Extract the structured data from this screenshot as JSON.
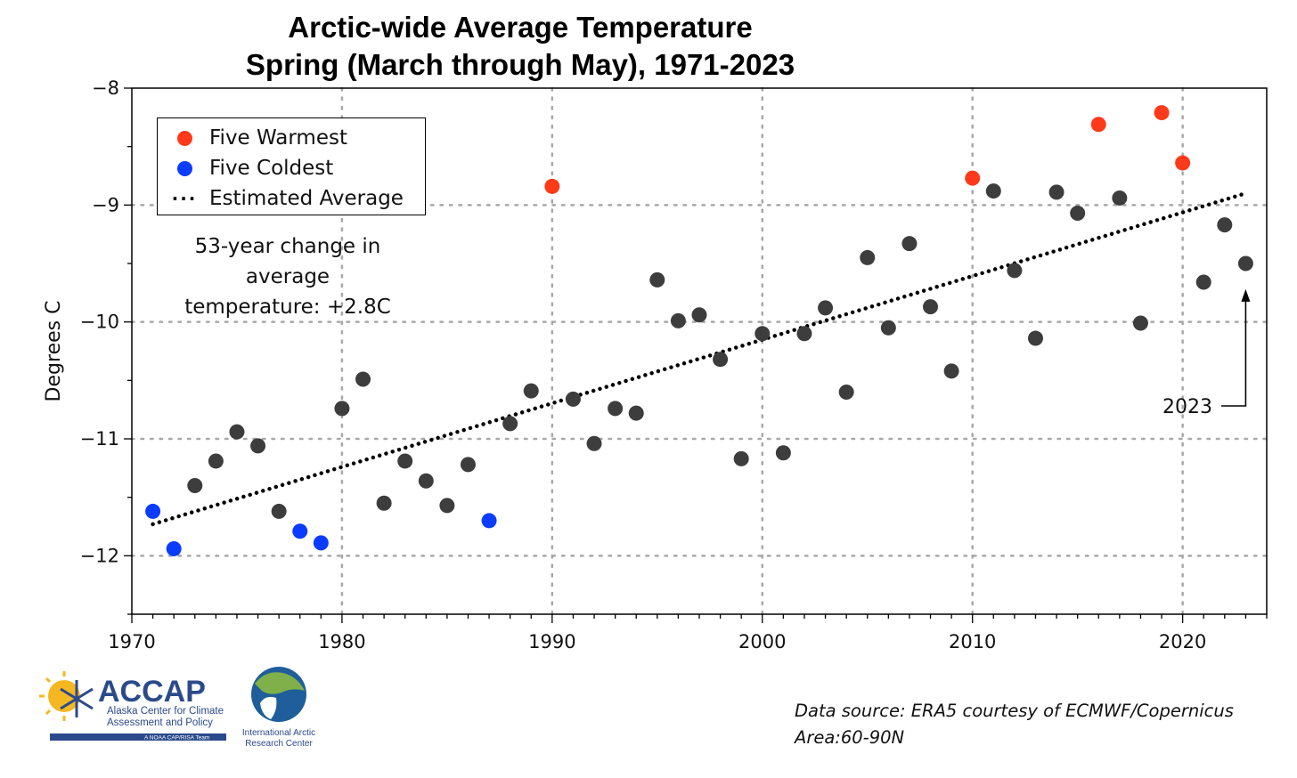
{
  "chart_data": {
    "type": "scatter",
    "title": "Arctic-wide Average Temperature",
    "subtitle": "Spring (March through May), 1971-2023",
    "xlabel": "",
    "ylabel": "Degrees C",
    "xlim": [
      1970,
      2024
    ],
    "ylim": [
      -12.5,
      -8
    ],
    "xticks": [
      1970,
      1980,
      1990,
      2000,
      2010,
      2020
    ],
    "yticks": [
      -8,
      -9,
      -10,
      -11,
      -12
    ],
    "ytick_labels": [
      "−8",
      "−9",
      "−10",
      "−11",
      "−12"
    ],
    "grid": true,
    "legend_position": "top-left",
    "series": [
      {
        "name": "Five Warmest",
        "color": "#ff3a1a",
        "x": [
          1990,
          2010,
          2016,
          2019,
          2020
        ],
        "y": [
          -8.84,
          -8.77,
          -8.31,
          -8.21,
          -8.64
        ]
      },
      {
        "name": "Five Coldest",
        "color": "#0a3cff",
        "x": [
          1971,
          1972,
          1978,
          1979,
          1987
        ],
        "y": [
          -11.62,
          -11.94,
          -11.79,
          -11.89,
          -11.7
        ]
      },
      {
        "name": "",
        "color": "#3d3d3d",
        "x": [
          1973,
          1974,
          1975,
          1976,
          1977,
          1980,
          1981,
          1982,
          1983,
          1984,
          1985,
          1986,
          1988,
          1989,
          1991,
          1992,
          1993,
          1994,
          1995,
          1996,
          1997,
          1998,
          1999,
          2000,
          2001,
          2002,
          2003,
          2004,
          2005,
          2006,
          2007,
          2008,
          2009,
          2011,
          2012,
          2013,
          2014,
          2015,
          2017,
          2018,
          2021,
          2022,
          2023
        ],
        "y": [
          -11.4,
          -11.19,
          -10.94,
          -11.06,
          -11.62,
          -10.74,
          -10.49,
          -11.55,
          -11.19,
          -11.36,
          -11.57,
          -11.22,
          -10.87,
          -10.59,
          -10.66,
          -11.04,
          -10.74,
          -10.78,
          -9.64,
          -9.99,
          -9.94,
          -10.32,
          -11.17,
          -10.1,
          -11.12,
          -10.1,
          -9.88,
          -10.6,
          -9.45,
          -10.05,
          -9.33,
          -9.87,
          -10.42,
          -8.88,
          -9.56,
          -10.14,
          -8.89,
          -9.07,
          -8.94,
          -10.01,
          -9.66,
          -9.17,
          -9.5
        ]
      }
    ],
    "trend": {
      "name": "Estimated Average",
      "x": [
        1971,
        2023
      ],
      "y": [
        -11.73,
        -8.9
      ]
    },
    "legend": [
      {
        "label": "Five Warmest",
        "color": "#ff3a1a",
        "marker": "dot"
      },
      {
        "label": "Five Coldest",
        "color": "#0a3cff",
        "marker": "dot"
      },
      {
        "label": "Estimated Average",
        "color": "#000000",
        "marker": "dotted-line"
      }
    ],
    "annotations": {
      "change_line1": "53-year change in average",
      "change_line2": "temperature: +2.8C",
      "arrow_label": "2023",
      "arrow_target": {
        "x": 2023,
        "y": -9.72
      }
    }
  },
  "footer": {
    "source_line1": "Data source: ERA5 courtesy of ECMWF/Copernicus",
    "source_line2": "Area:60-90N"
  },
  "logos": {
    "accap_name": "ACCAP",
    "accap_line1": "Alaska Center for Climate",
    "accap_line2": "Assessment and Policy",
    "accap_tag": "A NOAA CAP/RISA Team",
    "iarc_line1": "International Arctic",
    "iarc_line2": "Research Center"
  },
  "colors": {
    "warm": "#ff3a1a",
    "cold": "#0a3cff",
    "normal": "#3d3d3d",
    "accap_blue": "#2b4a8c",
    "sun": "#f5b822"
  }
}
